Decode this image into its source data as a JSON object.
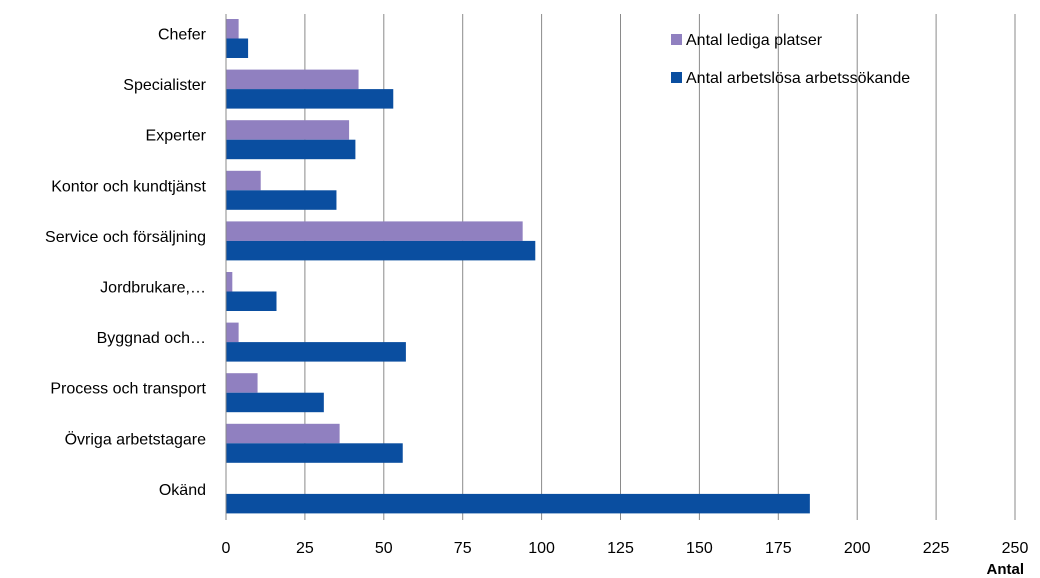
{
  "chart_data": {
    "type": "bar",
    "orientation": "horizontal",
    "categories": [
      "Chefer",
      "Specialister",
      "Experter",
      "Kontor och kundtjänst",
      "Service och försäljning",
      "Jordbrukare,…",
      "Byggnad och…",
      "Process och transport",
      "Övriga arbetstagare",
      "Okänd"
    ],
    "series": [
      {
        "name": "Antal lediga platser",
        "color": "#9080C0",
        "values": [
          4,
          42,
          39,
          11,
          94,
          2,
          4,
          10,
          36,
          0
        ]
      },
      {
        "name": "Antal arbetslösa arbetssökande",
        "color": "#0A4EA0",
        "values": [
          7,
          53,
          41,
          35,
          98,
          16,
          57,
          31,
          56,
          185
        ]
      }
    ],
    "xlabel": "Antal",
    "xlim": [
      0,
      250
    ],
    "xticks": [
      "0",
      "25",
      "50",
      "75",
      "100",
      "125",
      "150",
      "175",
      "200",
      "225",
      "250"
    ],
    "grid": "vertical",
    "legend": "top-right"
  }
}
